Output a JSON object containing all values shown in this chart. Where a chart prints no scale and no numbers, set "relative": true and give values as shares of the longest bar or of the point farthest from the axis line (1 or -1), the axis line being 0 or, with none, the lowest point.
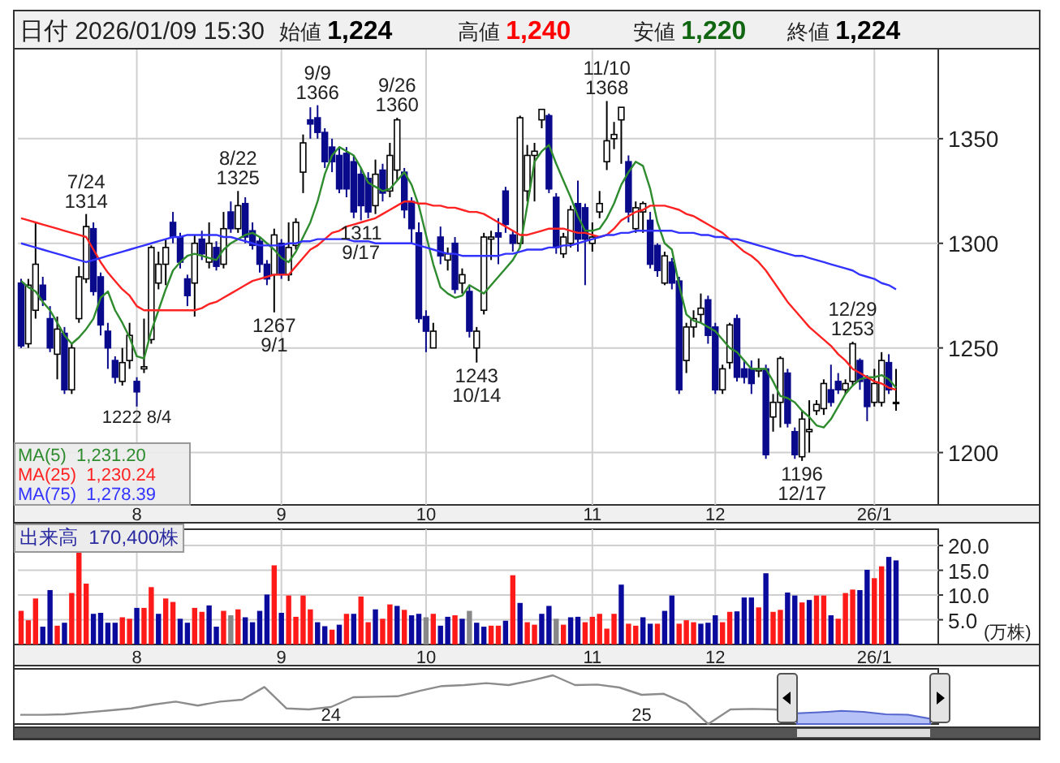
{
  "chart_data": [
    {
      "type": "candlestick",
      "title": "日付 2026/01/09 15:30",
      "annotations": [
        "始値 1,224",
        "高値 1,240",
        "安値 1,220",
        "終値 1,224",
        {
          "text": "7/24\n1314",
          "y": 1314
        },
        {
          "text": "1222\n8/4",
          "y": 1222
        },
        {
          "text": "8/22\n1325",
          "y": 1325
        },
        {
          "text": "1267\n9/1",
          "y": 1267
        },
        {
          "text": "9/9\n1366",
          "y": 1366
        },
        {
          "text": "1311\n9/17",
          "y": 1311
        },
        {
          "text": "9/26\n1360",
          "y": 1360
        },
        {
          "text": "1243\n10/14",
          "y": 1243
        },
        {
          "text": "11/10\n1368",
          "y": 1368
        },
        {
          "text": "1196\n12/17",
          "y": 1196
        },
        {
          "text": "12/29\n1253",
          "y": 1253
        }
      ],
      "categories": [
        null,
        null,
        null,
        null,
        null,
        null,
        null,
        null,
        null,
        null,
        null,
        null,
        null,
        null,
        null,
        null,
        "8",
        null,
        null,
        null,
        null,
        null,
        null,
        null,
        null,
        null,
        null,
        null,
        null,
        null,
        null,
        null,
        null,
        null,
        null,
        null,
        "9",
        null,
        null,
        null,
        null,
        null,
        null,
        null,
        null,
        null,
        null,
        null,
        null,
        null,
        null,
        null,
        null,
        null,
        null,
        null,
        "10",
        null,
        null,
        null,
        null,
        null,
        null,
        null,
        null,
        null,
        null,
        null,
        null,
        null,
        null,
        null,
        null,
        null,
        null,
        null,
        null,
        null,
        null,
        "11",
        null,
        null,
        null,
        null,
        null,
        null,
        null,
        null,
        null,
        null,
        null,
        null,
        null,
        null,
        null,
        null,
        "12",
        null,
        null,
        null,
        null,
        null,
        null,
        null,
        null,
        null,
        null,
        null,
        null,
        null,
        null,
        null,
        null,
        null,
        null,
        null,
        null,
        null,
        "26/1",
        null,
        null,
        null
      ],
      "ohlc": [
        [
          1281,
          1283,
          1250,
          1251
        ],
        [
          1252,
          1283,
          1250,
          1280
        ],
        [
          1268,
          1310,
          1264,
          1290
        ],
        [
          1280,
          1284,
          1270,
          1273
        ],
        [
          1264,
          1270,
          1248,
          1250
        ],
        [
          1247,
          1265,
          1235,
          1259
        ],
        [
          1257,
          1260,
          1228,
          1230
        ],
        [
          1230,
          1252,
          1228,
          1250
        ],
        [
          1264,
          1289,
          1262,
          1284
        ],
        [
          1283,
          1314,
          1281,
          1308
        ],
        [
          1307,
          1310,
          1275,
          1277
        ],
        [
          1284,
          1286,
          1256,
          1261
        ],
        [
          1258,
          1262,
          1240,
          1250
        ],
        [
          1244,
          1246,
          1233,
          1236
        ],
        [
          1234,
          1250,
          1232,
          1243
        ],
        [
          1244,
          1262,
          1240,
          1256
        ],
        [
          1234,
          1236,
          1222,
          1229
        ],
        [
          1240,
          1264,
          1238,
          1241
        ],
        [
          1254,
          1299,
          1252,
          1298
        ],
        [
          1281,
          1296,
          1278,
          1290
        ],
        [
          1290,
          1302,
          1280,
          1298
        ],
        [
          1310,
          1315,
          1300,
          1303
        ],
        [
          1303,
          1305,
          1288,
          1291
        ],
        [
          1283,
          1285,
          1270,
          1275
        ],
        [
          1281,
          1304,
          1265,
          1300
        ],
        [
          1302,
          1306,
          1292,
          1295
        ],
        [
          1291,
          1310,
          1288,
          1300
        ],
        [
          1298,
          1301,
          1287,
          1289
        ],
        [
          1290,
          1315,
          1288,
          1307
        ],
        [
          1315,
          1320,
          1305,
          1307
        ],
        [
          1307,
          1325,
          1305,
          1318
        ],
        [
          1319,
          1322,
          1300,
          1303
        ],
        [
          1306,
          1310,
          1297,
          1299
        ],
        [
          1301,
          1303,
          1286,
          1290
        ],
        [
          1290,
          1292,
          1280,
          1283
        ],
        [
          1285,
          1307,
          1267,
          1304
        ],
        [
          1300,
          1302,
          1283,
          1285
        ],
        [
          1285,
          1310,
          1282,
          1298
        ],
        [
          1299,
          1312,
          1297,
          1310
        ],
        [
          1334,
          1352,
          1324,
          1348
        ],
        [
          1359,
          1365,
          1350,
          1357
        ],
        [
          1360,
          1366,
          1350,
          1353
        ],
        [
          1353,
          1355,
          1336,
          1339
        ],
        [
          1346,
          1350,
          1334,
          1339
        ],
        [
          1342,
          1346,
          1324,
          1326
        ],
        [
          1343,
          1346,
          1322,
          1326
        ],
        [
          1339,
          1342,
          1312,
          1315
        ],
        [
          1333,
          1336,
          1311,
          1318
        ],
        [
          1331,
          1334,
          1312,
          1315
        ],
        [
          1318,
          1340,
          1314,
          1333
        ],
        [
          1335,
          1338,
          1320,
          1324
        ],
        [
          1325,
          1348,
          1322,
          1342
        ],
        [
          1335,
          1360,
          1330,
          1359
        ],
        [
          1334,
          1336,
          1312,
          1316
        ],
        [
          1320,
          1322,
          1300,
          1307
        ],
        [
          1305,
          1310,
          1262,
          1264
        ],
        [
          1265,
          1268,
          1248,
          1258
        ],
        [
          1250,
          1262,
          1250,
          1258
        ],
        [
          1303,
          1308,
          1290,
          1294
        ],
        [
          1292,
          1298,
          1287,
          1295
        ],
        [
          1300,
          1303,
          1276,
          1278
        ],
        [
          1281,
          1288,
          1276,
          1285
        ],
        [
          1277,
          1280,
          1255,
          1258
        ],
        [
          1250,
          1260,
          1243,
          1258
        ],
        [
          1268,
          1305,
          1266,
          1303
        ],
        [
          1302,
          1306,
          1292,
          1303
        ],
        [
          1305,
          1312,
          1290,
          1303
        ],
        [
          1325,
          1327,
          1305,
          1309
        ],
        [
          1304,
          1306,
          1296,
          1300
        ],
        [
          1300,
          1361,
          1298,
          1360
        ],
        [
          1325,
          1347,
          1320,
          1342
        ],
        [
          1342,
          1348,
          1320,
          1344
        ],
        [
          1359,
          1364,
          1355,
          1364
        ],
        [
          1361,
          1362,
          1324,
          1326
        ],
        [
          1322,
          1324,
          1295,
          1298
        ],
        [
          1295,
          1305,
          1293,
          1303
        ],
        [
          1300,
          1318,
          1298,
          1316
        ],
        [
          1319,
          1330,
          1296,
          1302
        ],
        [
          1317,
          1319,
          1280,
          1302
        ],
        [
          1300,
          1310,
          1296,
          1303
        ],
        [
          1315,
          1325,
          1312,
          1319
        ],
        [
          1339,
          1368,
          1335,
          1349
        ],
        [
          1350,
          1358,
          1345,
          1352
        ],
        [
          1359,
          1365,
          1338,
          1365
        ],
        [
          1339,
          1342,
          1310,
          1315
        ],
        [
          1307,
          1320,
          1305,
          1317
        ],
        [
          1315,
          1320,
          1305,
          1319
        ],
        [
          1311,
          1315,
          1288,
          1290
        ],
        [
          1299,
          1300,
          1284,
          1287
        ],
        [
          1281,
          1296,
          1280,
          1294
        ],
        [
          1291,
          1293,
          1278,
          1281
        ],
        [
          1282,
          1284,
          1228,
          1230
        ],
        [
          1244,
          1262,
          1238,
          1260
        ],
        [
          1260,
          1268,
          1255,
          1264
        ],
        [
          1266,
          1276,
          1262,
          1269
        ],
        [
          1273,
          1275,
          1252,
          1256
        ],
        [
          1260,
          1262,
          1228,
          1230
        ],
        [
          1230,
          1242,
          1228,
          1240
        ],
        [
          1243,
          1262,
          1240,
          1261
        ],
        [
          1264,
          1266,
          1234,
          1236
        ],
        [
          1240,
          1244,
          1233,
          1236
        ],
        [
          1240,
          1244,
          1228,
          1233
        ],
        [
          1239,
          1245,
          1236,
          1240
        ],
        [
          1240,
          1242,
          1197,
          1199
        ],
        [
          1217,
          1228,
          1210,
          1224
        ],
        [
          1224,
          1246,
          1212,
          1245
        ],
        [
          1238,
          1240,
          1212,
          1214
        ],
        [
          1210,
          1212,
          1197,
          1199
        ],
        [
          1198,
          1220,
          1196,
          1216
        ],
        [
          1210,
          1225,
          1200,
          1211
        ],
        [
          1220,
          1225,
          1218,
          1223
        ],
        [
          1221,
          1235,
          1218,
          1233
        ],
        [
          1230,
          1242,
          1222,
          1224
        ],
        [
          1234,
          1238,
          1228,
          1230
        ],
        [
          1230,
          1235,
          1228,
          1233
        ],
        [
          1234,
          1253,
          1232,
          1252
        ],
        [
          1244,
          1245,
          1230,
          1234
        ],
        [
          1235,
          1237,
          1215,
          1222
        ],
        [
          1224,
          1240,
          1222,
          1233
        ],
        [
          1224,
          1248,
          1222,
          1244
        ],
        [
          1243,
          1247,
          1228,
          1230
        ],
        [
          1224,
          1240,
          1220,
          1224
        ]
      ],
      "series": [
        {
          "name": "MA(5)  1,231.20",
          "type": "line",
          "color": "#2e8b2e",
          "values": [
            1282,
            1279,
            1277,
            1272,
            1268,
            1262,
            1256,
            1252,
            1255,
            1259,
            1264,
            1274,
            1277,
            1268,
            1262,
            1255,
            1246,
            1245,
            1258,
            1268,
            1278,
            1287,
            1291,
            1294,
            1295,
            1294,
            1293,
            1292,
            1297,
            1300,
            1302,
            1304,
            1305,
            1303,
            1300,
            1297,
            1293,
            1291,
            1296,
            1303,
            1310,
            1320,
            1333,
            1342,
            1346,
            1344,
            1342,
            1336,
            1329,
            1327,
            1325,
            1326,
            1330,
            1334,
            1328,
            1318,
            1304,
            1290,
            1279,
            1276,
            1274,
            1275,
            1280,
            1278,
            1276,
            1280,
            1284,
            1288,
            1292,
            1298,
            1318,
            1339,
            1344,
            1347,
            1338,
            1330,
            1322,
            1313,
            1306,
            1306,
            1307,
            1312,
            1319,
            1328,
            1334,
            1339,
            1337,
            1326,
            1310,
            1300,
            1297,
            1280,
            1266,
            1263,
            1262,
            1260,
            1258,
            1254,
            1250,
            1248,
            1244,
            1240,
            1240,
            1240,
            1234,
            1227,
            1226,
            1224,
            1220,
            1217,
            1213,
            1212,
            1216,
            1222,
            1228,
            1232,
            1235,
            1236,
            1236,
            1237,
            1235,
            1231
          ]
        },
        {
          "name": "MA(25)  1,230.24",
          "type": "line",
          "color": "#ff2222",
          "values": [
            1312,
            1311,
            1310,
            1309,
            1308,
            1307,
            1306,
            1305,
            1304,
            1303,
            1297,
            1291,
            1286,
            1282,
            1278,
            1275,
            1270,
            1268,
            1268,
            1268,
            1268,
            1268,
            1268,
            1268,
            1268,
            1269,
            1271,
            1272,
            1274,
            1276,
            1278,
            1280,
            1282,
            1283,
            1284,
            1285,
            1285,
            1285,
            1289,
            1293,
            1297,
            1299,
            1302,
            1305,
            1306,
            1308,
            1309,
            1310,
            1311,
            1312,
            1314,
            1316,
            1318,
            1320,
            1320,
            1319,
            1319,
            1318,
            1318,
            1317,
            1317,
            1316,
            1315,
            1315,
            1314,
            1312,
            1310,
            1308,
            1306,
            1304,
            1304,
            1305,
            1306,
            1307,
            1307,
            1307,
            1306,
            1305,
            1305,
            1304,
            1303,
            1304,
            1307,
            1311,
            1313,
            1315,
            1316,
            1318,
            1318,
            1318,
            1317,
            1316,
            1314,
            1313,
            1311,
            1309,
            1307,
            1305,
            1302,
            1299,
            1296,
            1294,
            1291,
            1287,
            1282,
            1277,
            1272,
            1268,
            1264,
            1260,
            1257,
            1254,
            1251,
            1247,
            1244,
            1240,
            1238,
            1236,
            1234,
            1233,
            1231,
            1230
          ]
        },
        {
          "name": "MA(75)  1,278.39",
          "type": "line",
          "color": "#3333ff",
          "values": [
            1300,
            1299,
            1298,
            1297,
            1296,
            1295,
            1294,
            1293,
            1292,
            1291,
            1292,
            1293,
            1294,
            1295,
            1296,
            1297,
            1298,
            1299,
            1300,
            1301,
            1302,
            1303,
            1303,
            1304,
            1304,
            1304,
            1304,
            1304,
            1303,
            1303,
            1302,
            1301,
            1300,
            1299,
            1299,
            1299,
            1299,
            1300,
            1300,
            1301,
            1301,
            1302,
            1302,
            1302,
            1302,
            1302,
            1301,
            1301,
            1301,
            1300,
            1300,
            1300,
            1300,
            1300,
            1300,
            1299,
            1298,
            1297,
            1296,
            1295,
            1295,
            1294,
            1294,
            1294,
            1294,
            1294,
            1294,
            1295,
            1295,
            1296,
            1297,
            1297,
            1297,
            1298,
            1298,
            1299,
            1299,
            1300,
            1301,
            1302,
            1303,
            1304,
            1304,
            1305,
            1305,
            1306,
            1306,
            1306,
            1306,
            1306,
            1306,
            1305,
            1305,
            1305,
            1304,
            1304,
            1303,
            1303,
            1302,
            1302,
            1301,
            1300,
            1299,
            1298,
            1297,
            1296,
            1295,
            1294,
            1294,
            1293,
            1292,
            1291,
            1290,
            1289,
            1288,
            1287,
            1285,
            1284,
            1283,
            1281,
            1280,
            1278
          ]
        }
      ],
      "ylim": [
        1175,
        1393
      ],
      "yticks": [
        1200,
        1250,
        1300,
        1350
      ],
      "grid": true,
      "legend": "bottom left"
    },
    {
      "type": "bar",
      "title": "出来高  170,400株",
      "ylabel": "(万株)",
      "categories": [
        null,
        null,
        null,
        null,
        null,
        null,
        null,
        null,
        null,
        null,
        null,
        null,
        null,
        null,
        null,
        null,
        "8",
        null,
        null,
        null,
        null,
        null,
        null,
        null,
        null,
        null,
        null,
        null,
        null,
        null,
        null,
        null,
        null,
        null,
        null,
        null,
        "9",
        null,
        null,
        null,
        null,
        null,
        null,
        null,
        null,
        null,
        null,
        null,
        null,
        null,
        null,
        null,
        null,
        null,
        null,
        null,
        "10",
        null,
        null,
        null,
        null,
        null,
        null,
        null,
        null,
        null,
        null,
        null,
        null,
        null,
        null,
        null,
        null,
        null,
        null,
        null,
        null,
        null,
        null,
        "11",
        null,
        null,
        null,
        null,
        null,
        null,
        null,
        null,
        null,
        null,
        null,
        null,
        null,
        null,
        null,
        null,
        "12",
        null,
        null,
        null,
        null,
        null,
        null,
        null,
        null,
        null,
        null,
        null,
        null,
        null,
        null,
        null,
        null,
        null,
        null,
        null,
        null,
        null,
        "26/1",
        null,
        null,
        null
      ],
      "values": [
        6.8,
        4.9,
        9.3,
        3.6,
        11.0,
        3.8,
        4.4,
        10.4,
        18.9,
        12.3,
        6.2,
        6.4,
        4.4,
        4.4,
        5.5,
        5.2,
        7.4,
        7.4,
        11.6,
        6.2,
        9.3,
        8.6,
        5.2,
        4.4,
        7.4,
        6.6,
        7.9,
        3.6,
        6.8,
        5.9,
        7.1,
        5.5,
        4.5,
        6.8,
        10.1,
        16.0,
        6.4,
        9.9,
        5.6,
        9.9,
        7.1,
        4.5,
        3.7,
        3.0,
        4.0,
        6.2,
        6.2,
        9.7,
        4.5,
        7.1,
        5.2,
        8.1,
        7.8,
        7.0,
        5.9,
        6.2,
        5.5,
        6.2,
        3.8,
        5.6,
        5.9,
        5.2,
        6.8,
        4.4,
        3.6,
        3.8,
        3.8,
        4.8,
        14.0,
        8.4,
        4.5,
        4.0,
        6.2,
        7.8,
        5.2,
        4.0,
        5.5,
        5.6,
        4.5,
        5.6,
        6.2,
        3.2,
        6.2,
        12.1,
        4.2,
        3.8,
        5.5,
        4.2,
        4.2,
        6.8,
        9.9,
        4.2,
        4.9,
        4.5,
        4.2,
        4.4,
        5.9,
        4.5,
        6.6,
        6.7,
        9.5,
        9.5,
        7.5,
        14.4,
        6.6,
        7.0,
        10.5,
        9.9,
        8.5,
        9.0,
        9.9,
        9.9,
        5.9,
        5.2,
        10.4,
        11.1,
        11.0,
        15.1,
        13.4,
        15.8,
        17.7,
        17.0
      ],
      "colors": [
        "#ff1a1a",
        "#ff1a1a",
        "#ff1a1a",
        "#0a0a9c",
        "#0a0a9c",
        "#ff1a1a",
        "#0a0a9c",
        "#ff1a1a",
        "#ff1a1a",
        "#ff1a1a",
        "#0a0a9c",
        "#0a0a9c",
        "#0a0a9c",
        "#0a0a9c",
        "#ff1a1a",
        "#ff1a1a",
        "#0a0a9c",
        "#ff1a1a",
        "#ff1a1a",
        "#0a0a9c",
        "#ff1a1a",
        "#ff1a1a",
        "#0a0a9c",
        "#0a0a9c",
        "#ff1a1a",
        "#ff1a1a",
        "#0a0a9c",
        "#0a0a9c",
        "#ff1a1a",
        "#888888",
        "#ff1a1a",
        "#0a0a9c",
        "#0a0a9c",
        "#0a0a9c",
        "#0a0a9c",
        "#ff1a1a",
        "#0a0a9c",
        "#ff1a1a",
        "#ff1a1a",
        "#ff1a1a",
        "#ff1a1a",
        "#0a0a9c",
        "#0a0a9c",
        "#ff1a1a",
        "#0a0a9c",
        "#ff1a1a",
        "#0a0a9c",
        "#ff1a1a",
        "#ff1a1a",
        "#0a0a9c",
        "#ff1a1a",
        "#ff1a1a",
        "#0a0a9c",
        "#ff1a1a",
        "#0a0a9c",
        "#0a0a9c",
        "#888888",
        "#ff1a1a",
        "#0a0a9c",
        "#0a0a9c",
        "#ff1a1a",
        "#0a0a9c",
        "#888888",
        "#0a0a9c",
        "#0a0a9c",
        "#ff1a1a",
        "#ff1a1a",
        "#0a0a9c",
        "#ff1a1a",
        "#0a0a9c",
        "#ff1a1a",
        "#ff1a1a",
        "#0a0a9c",
        "#0a0a9c",
        "#888888",
        "#ff1a1a",
        "#0a0a9c",
        "#0a0a9c",
        "#ff1a1a",
        "#ff1a1a",
        "#ff1a1a",
        "#ff1a1a",
        "#ff1a1a",
        "#0a0a9c",
        "#ff1a1a",
        "#ff1a1a",
        "#0a0a9c",
        "#0a0a9c",
        "#ff1a1a",
        "#0a0a9c",
        "#0a0a9c",
        "#ff1a1a",
        "#ff1a1a",
        "#ff1a1a",
        "#0a0a9c",
        "#0a0a9c",
        "#0a0a9c",
        "#ff1a1a",
        "#ff1a1a",
        "#0a0a9c",
        "#0a0a9c",
        "#0a0a9c",
        "#ff1a1a",
        "#0a0a9c",
        "#ff1a1a",
        "#ff1a1a",
        "#0a0a9c",
        "#0a0a9c",
        "#ff1a1a",
        "#0a0a9c",
        "#ff1a1a",
        "#ff1a1a",
        "#0a0a9c",
        "#ff1a1a",
        "#ff1a1a",
        "#ff1a1a",
        "#0a0a9c",
        "#0a0a9c",
        "#ff1a1a",
        "#ff1a1a",
        "#0a0a9c",
        "#0a0a9c"
      ],
      "ylim": [
        0,
        23.3
      ],
      "yticks": [
        {
          "value": 5,
          "label": "5.0"
        },
        {
          "value": 10,
          "label": "10.0"
        },
        {
          "value": 15,
          "label": "15.0"
        },
        {
          "value": 20,
          "label": "20.0"
        }
      ],
      "grid": true
    },
    {
      "type": "line",
      "relative": true,
      "tick_labels": "x",
      "categories": [
        null,
        null,
        null,
        null,
        null,
        null,
        null,
        null,
        null,
        null,
        null,
        null,
        null,
        null,
        "24",
        null,
        null,
        null,
        null,
        null,
        null,
        null,
        null,
        null,
        null,
        null,
        null,
        null,
        "25",
        null,
        null,
        null,
        null,
        null,
        null,
        null,
        null,
        null,
        null,
        null,
        null,
        null
      ],
      "series": [
        {
          "type": "line",
          "color": "#8c8c8c",
          "values": [
            0.19,
            0.19,
            0.2,
            0.24,
            0.28,
            0.32,
            0.4,
            0.46,
            0.38,
            0.46,
            0.5,
            0.76,
            0.32,
            0.3,
            0.35,
            0.55,
            0.56,
            0.57,
            0.68,
            0.78,
            0.8,
            0.84,
            0.8,
            0.89,
            1.0,
            0.8,
            0.81,
            0.75,
            0.6,
            0.62,
            0.42,
            0.0,
            0.3,
            0.31,
            0.3,
            0.22,
            null,
            null,
            null,
            null,
            null,
            null
          ]
        },
        {
          "type": "area",
          "color": "#7a8ff0",
          "values": [
            null,
            null,
            null,
            null,
            null,
            null,
            null,
            null,
            null,
            null,
            null,
            null,
            null,
            null,
            null,
            null,
            null,
            null,
            null,
            null,
            null,
            null,
            null,
            null,
            null,
            null,
            null,
            null,
            null,
            null,
            null,
            null,
            null,
            null,
            null,
            0.22,
            0.24,
            0.27,
            0.25,
            0.2,
            0.19,
            0.11
          ]
        }
      ]
    }
  ]
}
